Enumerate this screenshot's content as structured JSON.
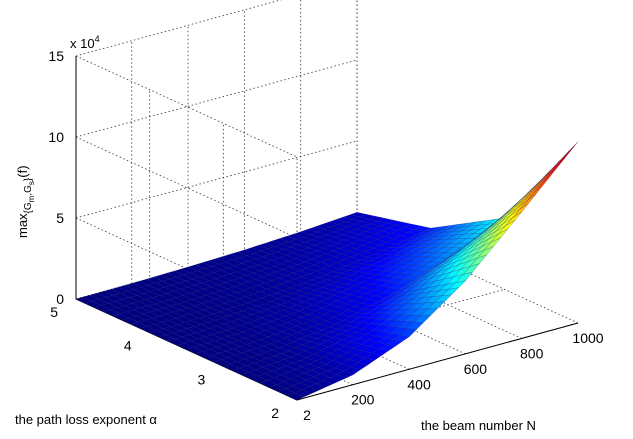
{
  "chart_data": {
    "type": "surface",
    "title": "",
    "xlabel": "the beam number N",
    "ylabel": "the path loss exponent α",
    "zlabel": "max{Gm,Gs}(f)",
    "zlabel_parts": {
      "base": "max",
      "sub1": "{G",
      "sub2": "m",
      "sub3": ",G",
      "sub4": "s",
      "sub5": "}",
      "tail": "(f)"
    },
    "z_scale_label": "x 10",
    "z_scale_exp": "4",
    "xlim": [
      2,
      1000
    ],
    "ylim": [
      2,
      5
    ],
    "zlim": [
      0,
      150000
    ],
    "x_ticks": [
      "2",
      "200",
      "400",
      "600",
      "800",
      "1000"
    ],
    "y_ticks": [
      "2",
      "3",
      "4",
      "5"
    ],
    "z_ticks": [
      "0",
      "5",
      "10",
      "15"
    ],
    "grid": true,
    "colormap": "jet",
    "series": [
      {
        "alpha": 2,
        "x": [
          2,
          200,
          400,
          600,
          800,
          1000
        ],
        "z": [
          0,
          6000,
          20000,
          45000,
          78000,
          112000
        ]
      },
      {
        "alpha": 3,
        "x": [
          2,
          200,
          400,
          600,
          800,
          1000
        ],
        "z": [
          0,
          2000,
          7000,
          16000,
          29000,
          44000
        ]
      },
      {
        "alpha": 4,
        "x": [
          2,
          200,
          400,
          600,
          800,
          1000
        ],
        "z": [
          0,
          600,
          2300,
          5500,
          10500,
          17000
        ]
      },
      {
        "alpha": 5,
        "x": [
          2,
          200,
          400,
          600,
          800,
          1000
        ],
        "z": [
          0,
          200,
          800,
          1800,
          3500,
          6000
        ]
      }
    ]
  }
}
